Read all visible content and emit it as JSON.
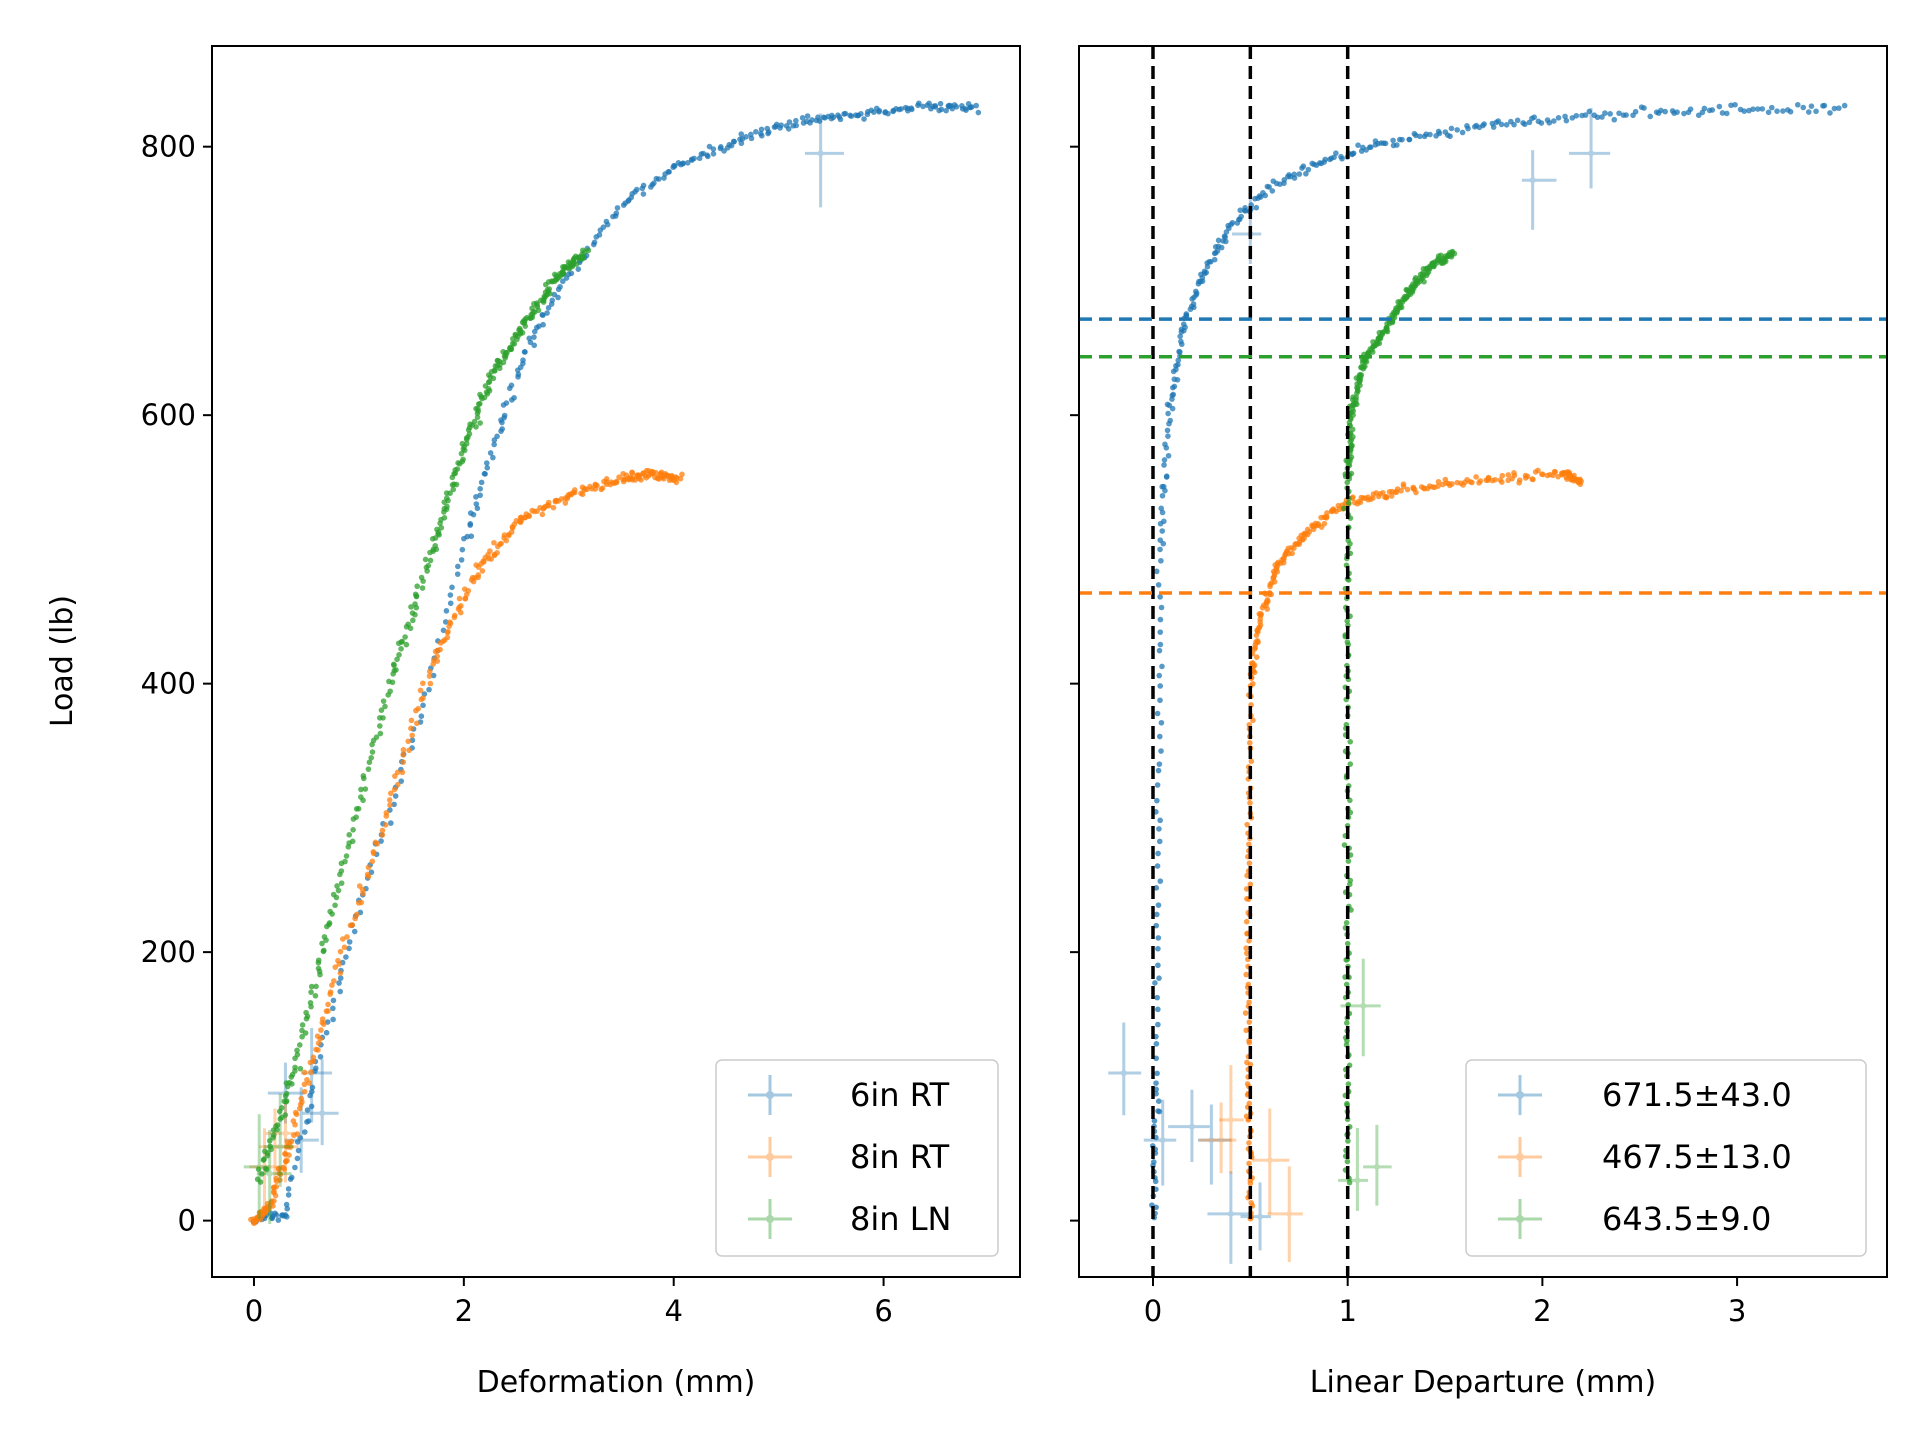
{
  "colors": {
    "blue": "#1f77b4",
    "orange": "#ff7f0e",
    "green": "#2ca02c",
    "ref_line": "#000000"
  },
  "chart_data": [
    {
      "type": "scatter",
      "xlabel": "Deformation (mm)",
      "ylabel": "Load (lb)",
      "xlim": [
        -0.4,
        7.3
      ],
      "ylim": [
        -42,
        875
      ],
      "xticks": [
        0,
        2,
        4,
        6
      ],
      "yticks": [
        0,
        200,
        400,
        600,
        800
      ],
      "grid": false,
      "legend": "lower right",
      "series": [
        {
          "name": "6in RT",
          "color": "#1f77b4",
          "curve": [
            [
              0,
              0
            ],
            [
              0.3,
              5
            ],
            [
              0.6,
              115
            ],
            [
              1.0,
              235
            ],
            [
              1.5,
              355
            ],
            [
              2.0,
              500
            ],
            [
              2.3,
              580
            ],
            [
              2.6,
              650
            ],
            [
              3.0,
              705
            ],
            [
              3.5,
              755
            ],
            [
              4.0,
              785
            ],
            [
              4.5,
              800
            ],
            [
              5.0,
              815
            ],
            [
              5.5,
              822
            ],
            [
              6.0,
              827
            ],
            [
              6.5,
              830
            ],
            [
              6.9,
              828
            ]
          ],
          "error_points": [
            [
              0.3,
              95
            ],
            [
              0.45,
              60
            ],
            [
              0.55,
              110
            ],
            [
              0.65,
              80
            ],
            [
              5.4,
              795
            ]
          ]
        },
        {
          "name": "8in RT",
          "color": "#ff7f0e",
          "curve": [
            [
              0,
              0
            ],
            [
              0.15,
              10
            ],
            [
              0.35,
              60
            ],
            [
              0.7,
              160
            ],
            [
              1.2,
              290
            ],
            [
              1.7,
              415
            ],
            [
              2.1,
              480
            ],
            [
              2.5,
              520
            ],
            [
              3.0,
              540
            ],
            [
              3.5,
              552
            ],
            [
              3.8,
              556
            ],
            [
              4.05,
              552
            ]
          ],
          "error_points": [
            [
              0.1,
              40
            ],
            [
              0.2,
              55
            ],
            [
              0.3,
              65
            ]
          ]
        },
        {
          "name": "8in LN",
          "color": "#2ca02c",
          "curve": [
            [
              0.05,
              30
            ],
            [
              0.4,
              115
            ],
            [
              0.8,
              250
            ],
            [
              1.3,
              400
            ],
            [
              1.7,
              500
            ],
            [
              2.0,
              575
            ],
            [
              2.3,
              635
            ],
            [
              2.6,
              670
            ],
            [
              2.9,
              705
            ],
            [
              3.15,
              722
            ]
          ],
          "error_points": [
            [
              0.05,
              40
            ],
            [
              0.15,
              35
            ],
            [
              0.25,
              55
            ]
          ]
        }
      ]
    },
    {
      "type": "scatter",
      "xlabel": "Linear Departure (mm)",
      "ylabel": "",
      "xlim": [
        -0.38,
        3.77
      ],
      "ylim": [
        -42,
        875
      ],
      "xticks": [
        0,
        1,
        2,
        3
      ],
      "yticks": [
        0,
        200,
        400,
        600,
        800
      ],
      "grid": false,
      "legend": "lower right",
      "vlines": [
        0,
        0.5,
        1
      ],
      "hlines": [
        {
          "value": 671.5,
          "color": "#1f77b4"
        },
        {
          "value": 643.5,
          "color": "#2ca02c"
        },
        {
          "value": 467.5,
          "color": "#ff7f0e"
        }
      ],
      "series": [
        {
          "name": "671.5±43.0",
          "color": "#1f77b4",
          "curve": [
            [
              0,
              0
            ],
            [
              0.02,
              100
            ],
            [
              0.03,
              300
            ],
            [
              0.04,
              500
            ],
            [
              0.08,
              600
            ],
            [
              0.15,
              660
            ],
            [
              0.25,
              705
            ],
            [
              0.4,
              740
            ],
            [
              0.6,
              770
            ],
            [
              0.9,
              790
            ],
            [
              1.2,
              803
            ],
            [
              1.6,
              813
            ],
            [
              2.0,
              820
            ],
            [
              2.5,
              825
            ],
            [
              3.0,
              828
            ],
            [
              3.55,
              828
            ]
          ],
          "error_points": [
            [
              0.4,
              5
            ],
            [
              0.55,
              3
            ],
            [
              0.2,
              70
            ],
            [
              0.3,
              60
            ],
            [
              0.05,
              60
            ],
            [
              -0.15,
              110
            ],
            [
              1.95,
              775
            ],
            [
              2.25,
              795
            ],
            [
              0.5,
              735
            ]
          ]
        },
        {
          "name": "467.5±13.0",
          "color": "#ff7f0e",
          "curve": [
            [
              0.5,
              0
            ],
            [
              0.49,
              100
            ],
            [
              0.49,
              250
            ],
            [
              0.5,
              400
            ],
            [
              0.55,
              450
            ],
            [
              0.65,
              490
            ],
            [
              0.8,
              515
            ],
            [
              1.0,
              535
            ],
            [
              1.3,
              545
            ],
            [
              1.7,
              552
            ],
            [
              2.1,
              556
            ],
            [
              2.2,
              550
            ]
          ],
          "error_points": [
            [
              0.35,
              60
            ],
            [
              0.4,
              75
            ],
            [
              0.6,
              45
            ],
            [
              0.7,
              5
            ]
          ]
        },
        {
          "name": "643.5±9.0",
          "color": "#2ca02c",
          "curve": [
            [
              1.0,
              30
            ],
            [
              1.0,
              200
            ],
            [
              1.0,
              400
            ],
            [
              1.0,
              550
            ],
            [
              1.02,
              600
            ],
            [
              1.08,
              640
            ],
            [
              1.2,
              665
            ],
            [
              1.3,
              690
            ],
            [
              1.42,
              710
            ],
            [
              1.55,
              722
            ]
          ],
          "error_points": [
            [
              1.05,
              30
            ],
            [
              1.15,
              40
            ],
            [
              1.08,
              160
            ]
          ]
        }
      ]
    }
  ]
}
